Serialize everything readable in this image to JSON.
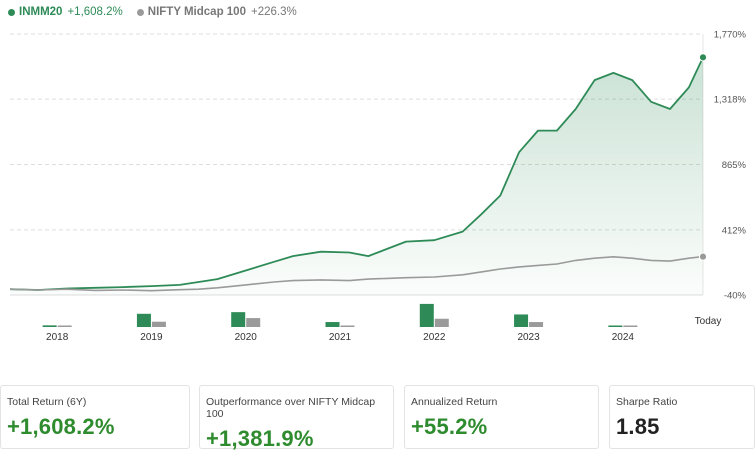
{
  "legend": {
    "primary": {
      "name": "INMM20",
      "change": "+1,608.2%"
    },
    "benchmark": {
      "name": "NIFTY Midcap 100",
      "change": "+226.3%"
    }
  },
  "colors": {
    "primary": "#2e8b57",
    "benchmark": "#9a9a9a",
    "grid": "#dddddd",
    "positive": "#2e8b2e"
  },
  "chart_data": {
    "type": "line",
    "y_ticks": [
      "1,770%",
      "1,318%",
      "865%",
      "412%",
      "-40%"
    ],
    "y_tick_values": [
      1770,
      1318,
      865,
      412,
      -40
    ],
    "ylim": [
      -40,
      1770
    ],
    "x_labels": [
      "2018",
      "2019",
      "2020",
      "2021",
      "2022",
      "2023",
      "2024",
      "Today"
    ],
    "x_label_pos": [
      0.5,
      1.5,
      2.5,
      3.5,
      4.5,
      5.5,
      6.5,
      7.35
    ],
    "xlim": [
      0,
      7.35
    ],
    "grid": true,
    "series": [
      {
        "name": "INMM20",
        "x": [
          0,
          0.3,
          0.6,
          0.9,
          1.2,
          1.5,
          1.8,
          2.0,
          2.2,
          2.5,
          2.8,
          3.0,
          3.3,
          3.6,
          3.8,
          4.0,
          4.2,
          4.5,
          4.8,
          5.0,
          5.2,
          5.4,
          5.6,
          5.8,
          6.0,
          6.2,
          6.4,
          6.6,
          6.8,
          7.0,
          7.2,
          7.35
        ],
        "values": [
          0,
          -5,
          5,
          10,
          15,
          22,
          30,
          50,
          70,
          130,
          190,
          230,
          260,
          255,
          230,
          280,
          330,
          340,
          400,
          520,
          650,
          950,
          1100,
          1100,
          1250,
          1450,
          1500,
          1450,
          1300,
          1250,
          1400,
          1608
        ]
      },
      {
        "name": "NIFTY Midcap 100",
        "x": [
          0,
          0.3,
          0.6,
          0.9,
          1.2,
          1.5,
          1.8,
          2.0,
          2.2,
          2.5,
          2.8,
          3.0,
          3.3,
          3.6,
          3.8,
          4.0,
          4.2,
          4.5,
          4.8,
          5.0,
          5.2,
          5.4,
          5.6,
          5.8,
          6.0,
          6.2,
          6.4,
          6.6,
          6.8,
          7.0,
          7.2,
          7.35
        ],
        "values": [
          0,
          -5,
          0,
          -8,
          -5,
          -10,
          -3,
          0,
          10,
          30,
          50,
          60,
          65,
          60,
          70,
          75,
          80,
          85,
          100,
          120,
          140,
          155,
          165,
          175,
          200,
          215,
          225,
          215,
          200,
          195,
          215,
          226
        ]
      }
    ],
    "bar_groups": [
      {
        "label": "2018",
        "values": [
          5,
          1
        ]
      },
      {
        "label": "2019",
        "values": [
          40,
          16
        ]
      },
      {
        "label": "2020",
        "values": [
          45,
          27
        ]
      },
      {
        "label": "2021",
        "values": [
          15,
          3
        ]
      },
      {
        "label": "2022",
        "values": [
          70,
          25
        ]
      },
      {
        "label": "2023",
        "values": [
          38,
          15
        ]
      },
      {
        "label": "2024",
        "values": [
          3,
          1
        ]
      }
    ]
  },
  "cards": [
    {
      "label": "Total Return (6Y)",
      "value": "+1,608.2%",
      "tone": "pos"
    },
    {
      "label": "Outperformance over NIFTY Midcap 100",
      "value": "+1,381.9%",
      "tone": "pos"
    },
    {
      "label": "Annualized Return",
      "value": "+55.2%",
      "tone": "pos"
    },
    {
      "label": "Sharpe Ratio",
      "value": "1.85",
      "tone": "neutral"
    }
  ]
}
